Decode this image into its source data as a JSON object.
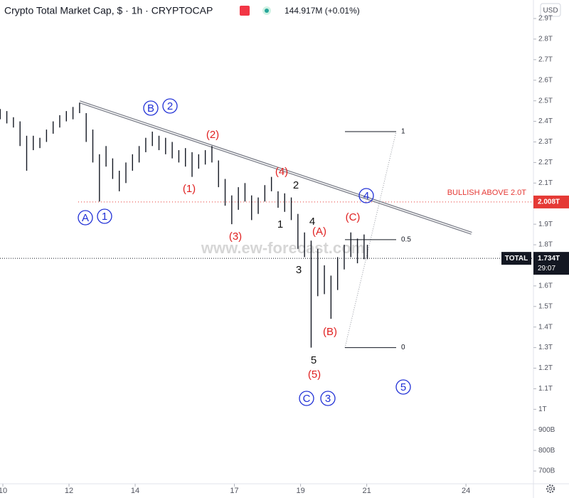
{
  "chart_data": {
    "type": "ohlc",
    "title": "Crypto Total Market Cap, $ · 1h · CRYPTOCAP",
    "volume": "144.917M (+0.01%)",
    "currency": "USD",
    "watermark": "www.ew-forecast.com",
    "xlim": [
      9.914,
      26.04
    ],
    "xticks": [
      {
        "value": 10,
        "label": "10"
      },
      12,
      14,
      17,
      19,
      21,
      24
    ],
    "ylim": [
      0.638,
      2.99
    ],
    "yticks": [
      {
        "value": 2.9,
        "label": "2.9T"
      },
      {
        "value": 2.8,
        "label": "2.8T"
      },
      {
        "value": 2.7,
        "label": "2.7T"
      },
      {
        "value": 2.6,
        "label": "2.6T"
      },
      {
        "value": 2.5,
        "label": "2.5T"
      },
      {
        "value": 2.4,
        "label": "2.4T"
      },
      {
        "value": 2.3,
        "label": "2.3T"
      },
      {
        "value": 2.2,
        "label": "2.2T"
      },
      {
        "value": 2.1,
        "label": "2.1T"
      },
      {
        "value": 1.9,
        "label": "1.9T"
      },
      {
        "value": 1.8,
        "label": "1.8T"
      },
      {
        "value": 1.6,
        "label": "1.6T"
      },
      {
        "value": 1.5,
        "label": "1.5T"
      },
      {
        "value": 1.4,
        "label": "1.4T"
      },
      {
        "value": 1.3,
        "label": "1.3T"
      },
      {
        "value": 1.2,
        "label": "1.2T"
      },
      {
        "value": 1.1,
        "label": "1.1T"
      },
      {
        "value": 1,
        "label": "1T"
      },
      {
        "value": 0.9,
        "label": "900B"
      },
      {
        "value": 0.8,
        "label": "800B"
      },
      {
        "value": 0.7,
        "label": "700B"
      }
    ],
    "series": [
      {
        "name": "TOTAL",
        "color": "#131722",
        "x": [
          9.92,
          10.12,
          10.32,
          10.52,
          10.72,
          10.92,
          11.12,
          11.32,
          11.52,
          11.72,
          11.92,
          12.12,
          12.32,
          12.52,
          12.72,
          12.92,
          13.12,
          13.32,
          13.52,
          13.72,
          13.92,
          14.12,
          14.32,
          14.52,
          14.72,
          14.92,
          15.12,
          15.32,
          15.52,
          15.72,
          15.92,
          16.12,
          16.32,
          16.52,
          16.72,
          16.92,
          17.12,
          17.32,
          17.52,
          17.72,
          17.92,
          18.12,
          18.32,
          18.52,
          18.72,
          18.92,
          19.12,
          19.32,
          19.52,
          19.72,
          19.92,
          20.12,
          20.32,
          20.52,
          20.72,
          20.92,
          21.02
        ],
        "high": [
          2.46,
          2.45,
          2.42,
          2.4,
          2.33,
          2.33,
          2.32,
          2.36,
          2.4,
          2.43,
          2.45,
          2.47,
          2.49,
          2.44,
          2.36,
          2.24,
          2.28,
          2.22,
          2.16,
          2.2,
          2.24,
          2.28,
          2.32,
          2.35,
          2.33,
          2.32,
          2.3,
          2.26,
          2.27,
          2.25,
          2.24,
          2.26,
          2.28,
          2.21,
          2.12,
          2.04,
          2.08,
          2.1,
          2.04,
          2.03,
          2.09,
          2.13,
          2.06,
          2.05,
          2.03,
          1.95,
          1.86,
          1.82,
          1.78,
          1.7,
          1.65,
          1.74,
          1.8,
          1.86,
          1.83,
          1.85,
          1.8
        ],
        "low": [
          2.41,
          2.39,
          2.37,
          2.28,
          2.16,
          2.26,
          2.27,
          2.3,
          2.34,
          2.37,
          2.4,
          2.41,
          2.44,
          2.3,
          2.2,
          2.01,
          2.18,
          2.12,
          2.06,
          2.1,
          2.16,
          2.2,
          2.25,
          2.28,
          2.26,
          2.24,
          2.22,
          2.2,
          2.18,
          2.13,
          2.17,
          2.19,
          2.2,
          2.08,
          1.99,
          1.9,
          1.97,
          2.01,
          1.92,
          1.95,
          2.01,
          2.06,
          1.98,
          1.96,
          1.92,
          1.78,
          1.74,
          1.3,
          1.55,
          1.56,
          1.44,
          1.58,
          1.68,
          1.74,
          1.71,
          1.73,
          1.73
        ]
      }
    ],
    "last_value": {
      "value": 1.734,
      "label": "1.734T",
      "countdown": "29:07"
    },
    "bullish_level": {
      "value": 2.008,
      "label": "2.008T",
      "text": "BULLISH ABOVE 2.0T",
      "color": "#e53935"
    },
    "trendline": {
      "x": [
        12.32,
        24.17
      ],
      "y": [
        2.495,
        1.856
      ],
      "color": "#787b86"
    },
    "fib": {
      "from": 1.3,
      "to": 2.35,
      "levels": [
        1,
        0.5,
        0
      ]
    },
    "annotations": [
      {
        "text": "B",
        "color": "#1f2fd6",
        "circled": true
      },
      {
        "text": "2",
        "color": "#1f2fd6",
        "circled": true
      },
      {
        "text": "A",
        "color": "#1f2fd6",
        "circled": true
      },
      {
        "text": "1",
        "color": "#1f2fd6",
        "circled": true
      },
      {
        "text": "C",
        "color": "#1f2fd6",
        "circled": true
      },
      {
        "text": "3",
        "color": "#1f2fd6",
        "circled": true
      },
      {
        "text": "4",
        "color": "#1f2fd6",
        "circled": true
      },
      {
        "text": "5",
        "color": "#1f2fd6",
        "circled": true
      },
      {
        "text": "(1)",
        "color": "#e02020",
        "circled": false
      },
      {
        "text": "(2)",
        "color": "#e02020",
        "circled": false
      },
      {
        "text": "(3)",
        "color": "#e02020",
        "circled": false
      },
      {
        "text": "(4)",
        "color": "#e02020",
        "circled": false
      },
      {
        "text": "(5)",
        "color": "#e02020",
        "circled": false
      },
      {
        "text": "(A)",
        "color": "#e02020",
        "circled": false
      },
      {
        "text": "(B)",
        "color": "#e02020",
        "circled": false
      },
      {
        "text": "(C)",
        "color": "#e02020",
        "circled": false
      },
      {
        "text": "1",
        "color": "#111111",
        "circled": false
      },
      {
        "text": "2",
        "color": "#111111",
        "circled": false
      },
      {
        "text": "3",
        "color": "#111111",
        "circled": false
      },
      {
        "text": "4",
        "color": "#111111",
        "circled": false
      },
      {
        "text": "5",
        "color": "#111111",
        "circled": false
      }
    ]
  }
}
